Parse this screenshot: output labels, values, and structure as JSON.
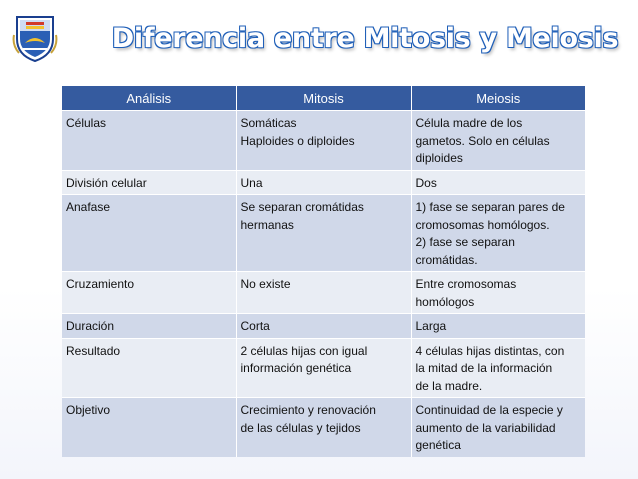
{
  "title": "Diferencia entre Mitosis y Meiosis",
  "table": {
    "headers": [
      "Análisis",
      "Mitosis",
      "Meiosis"
    ],
    "rows": [
      {
        "analisis": [
          "Células"
        ],
        "mitosis": [
          "Somáticas",
          "Haploides o diploides"
        ],
        "meiosis": [
          "Célula madre de los",
          "gametos. Solo en células",
          "diploides"
        ]
      },
      {
        "analisis": [
          "División celular"
        ],
        "mitosis": [
          "Una"
        ],
        "meiosis": [
          "Dos"
        ]
      },
      {
        "analisis": [
          "Anafase"
        ],
        "mitosis": [
          "Se separan cromátidas",
          "hermanas"
        ],
        "meiosis": [
          "1) fase se separan pares de",
          "cromosomas homólogos.",
          "2) fase se separan",
          "cromátidas."
        ]
      },
      {
        "analisis": [
          "Cruzamiento"
        ],
        "mitosis": [
          "No existe"
        ],
        "meiosis": [
          "Entre cromosomas",
          "homólogos"
        ]
      },
      {
        "analisis": [
          "Duración"
        ],
        "mitosis": [
          "Corta"
        ],
        "meiosis": [
          "Larga"
        ]
      },
      {
        "analisis": [
          "Resultado"
        ],
        "mitosis": [
          "2 células hijas con igual",
          "información genética"
        ],
        "meiosis": [
          "4 células hijas distintas, con",
          "la mitad de la información",
          "de la madre."
        ]
      },
      {
        "analisis": [
          "Objetivo"
        ],
        "mitosis": [
          "Crecimiento y renovación",
          "de las células y tejidos"
        ],
        "meiosis": [
          "Continuidad de la especie y",
          "aumento de la variabilidad",
          "genética"
        ]
      }
    ]
  },
  "colors": {
    "header_bg": "#355b9f",
    "row_dark": "#d0d8e9",
    "row_light": "#e9edf4",
    "title_outline": "#1f5fb8"
  }
}
